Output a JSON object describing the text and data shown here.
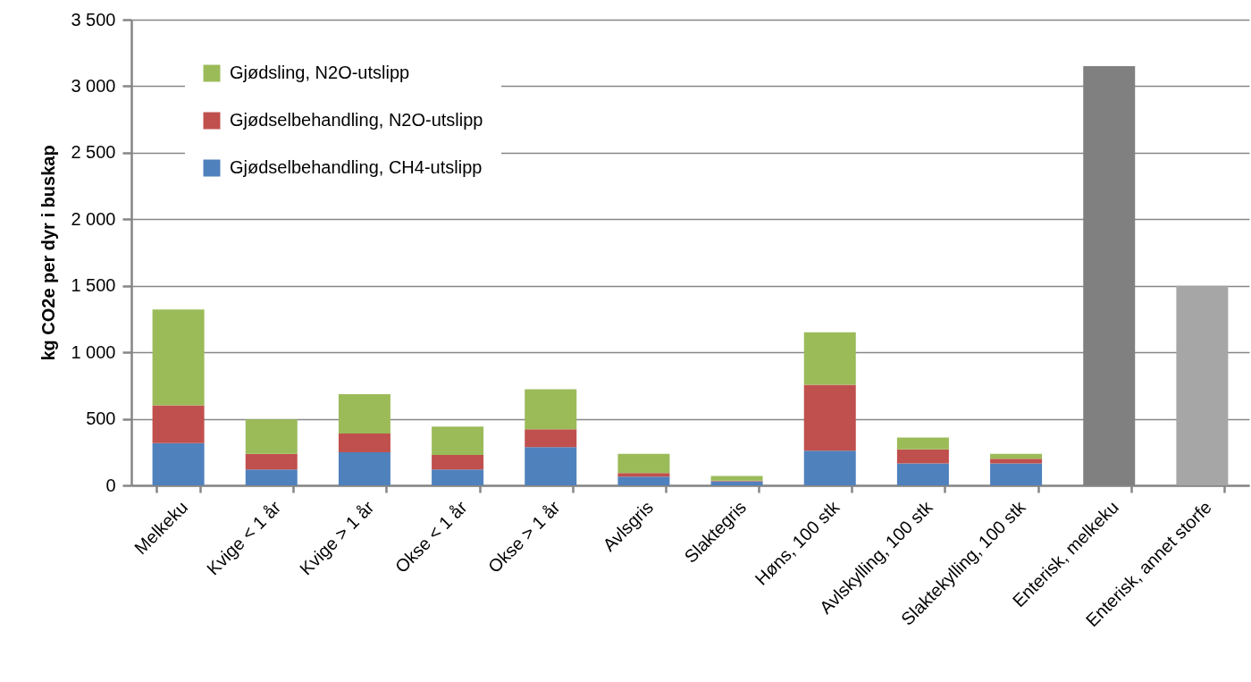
{
  "chart_data": {
    "type": "bar",
    "ylabel": "kg CO2e per dyr i buskap",
    "categories": [
      "Melkeku",
      "Kvige < 1 år",
      "Kvige > 1 år",
      "Okse < 1 år",
      "Okse > 1 år",
      "Avlsgris",
      "Slaktegris",
      "Høns, 100 stk",
      "Avlskylling, 100 stk",
      "Slaktekylling, 100 stk",
      "Enterisk, melkeku",
      "Enterisk, annet storfe"
    ],
    "stacked": true,
    "series": [
      {
        "name": "Gjødselbehandling, CH4-utslipp",
        "color": "#4f81bd",
        "values": [
          317,
          120,
          249,
          120,
          288,
          65,
          30,
          260,
          165,
          165,
          null,
          null
        ]
      },
      {
        "name": "Gjødselbehandling, N2O-utslipp",
        "color": "#c0504d",
        "values": [
          285,
          116,
          141,
          109,
          133,
          27,
          5,
          495,
          105,
          35,
          null,
          null
        ]
      },
      {
        "name": "Gjødsling, N2O-utslipp",
        "color": "#9bbb59",
        "values": [
          720,
          259,
          295,
          212,
          301,
          145,
          35,
          395,
          90,
          37,
          null,
          null
        ]
      },
      {
        "color": "#808080",
        "values": [
          null,
          null,
          null,
          null,
          null,
          null,
          null,
          null,
          null,
          null,
          3150,
          null
        ]
      },
      {
        "color": "#a6a6a6",
        "values": [
          null,
          null,
          null,
          null,
          null,
          null,
          null,
          null,
          null,
          null,
          null,
          1500
        ]
      }
    ],
    "ylim": [
      0,
      3500
    ],
    "yticks": [
      0,
      500,
      {
        "value": 1000,
        "label": "1 000"
      },
      {
        "value": 1500,
        "label": "1 500"
      },
      {
        "value": 2000,
        "label": "2 000"
      },
      {
        "value": 2500,
        "label": "2 500"
      },
      {
        "value": 3000,
        "label": "3 000"
      },
      {
        "value": 3500,
        "label": "3 500"
      }
    ],
    "grid": true,
    "legend": "top left"
  }
}
